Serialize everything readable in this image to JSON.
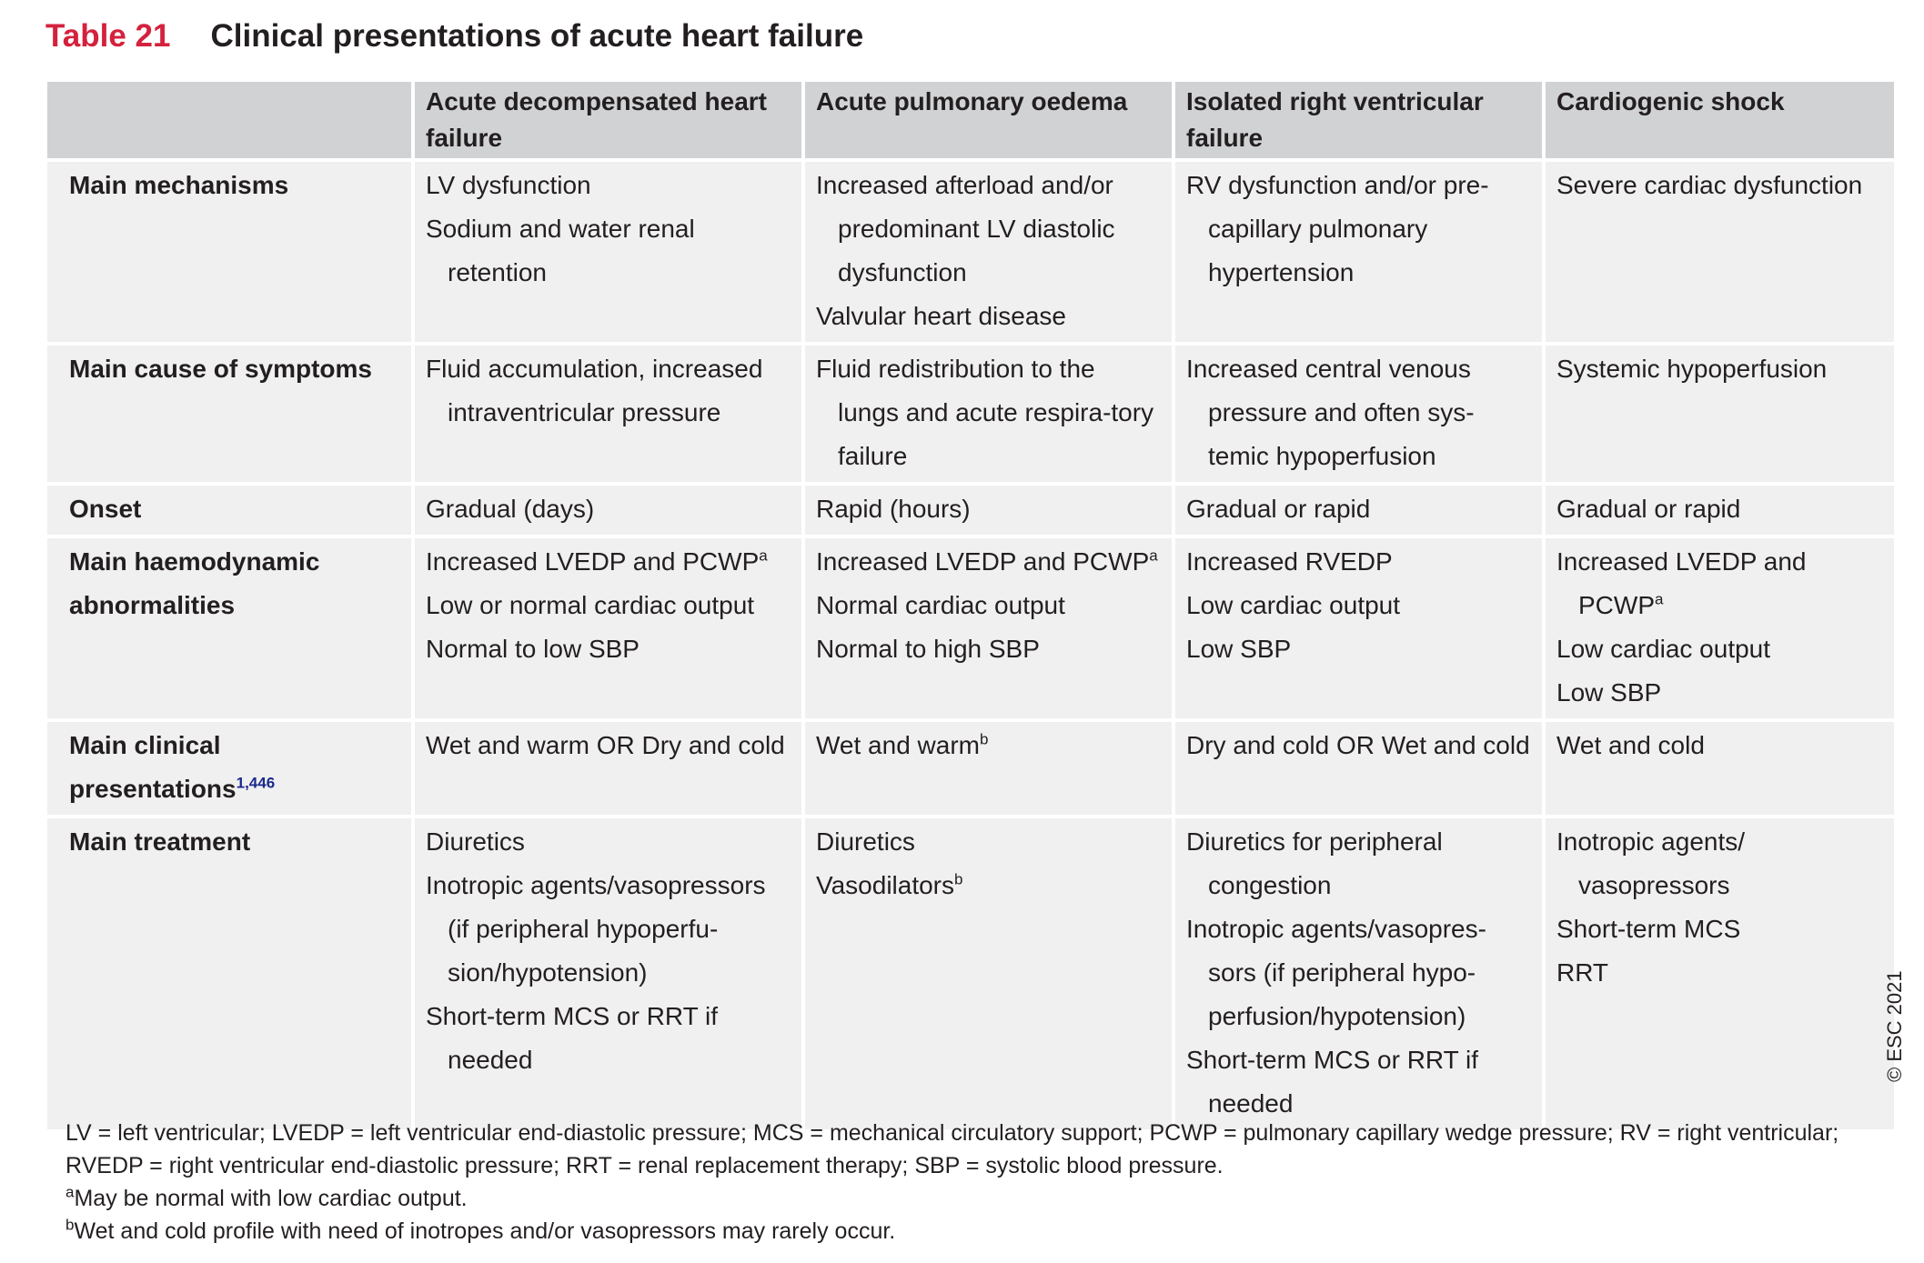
{
  "header": {
    "label": "Table 21",
    "title": "Clinical presentations of acute heart failure"
  },
  "table": {
    "columns": [
      "Acute decompensated heart failure",
      "Acute pulmonary oedema",
      "Isolated right ventricular failure",
      "Cardiogenic shock"
    ],
    "rows": [
      {
        "label": "Main mechanisms",
        "cells": [
          [
            "LV dysfunction",
            "Sodium and water renal retention"
          ],
          [
            "Increased afterload and/or predominant LV diastolic dysfunction",
            "Valvular heart disease"
          ],
          [
            "RV dysfunction and/or pre-capillary pulmonary hypertension"
          ],
          [
            "Severe cardiac dysfunction"
          ]
        ]
      },
      {
        "label": "Main cause of symptoms",
        "cells": [
          [
            "Fluid accumulation, increased intraventricular pressure"
          ],
          [
            "Fluid redistribution to the lungs and acute respira-tory failure"
          ],
          [
            "Increased central venous pressure and often sys-temic hypoperfusion"
          ],
          [
            "Systemic hypoperfusion"
          ]
        ]
      },
      {
        "label": "Onset",
        "cells": [
          [
            "Gradual (days)"
          ],
          [
            "Rapid (hours)"
          ],
          [
            "Gradual or rapid"
          ],
          [
            "Gradual or rapid"
          ]
        ]
      },
      {
        "label": "Main haemodynamic abnormalities",
        "cells": [
          [
            {
              "text": "Increased LVEDP and PCWP",
              "sup": "a"
            },
            "Low or normal cardiac output",
            "Normal to low SBP"
          ],
          [
            {
              "text": "Increased LVEDP and PCWP",
              "sup": "a"
            },
            "Normal cardiac output",
            "Normal to high SBP"
          ],
          [
            "Increased RVEDP",
            "Low cardiac output",
            "Low SBP"
          ],
          [
            {
              "text": "Increased LVEDP and PCWP",
              "sup": "a"
            },
            "Low cardiac output",
            "Low SBP"
          ]
        ]
      },
      {
        "label": {
          "text": "Main clinical presentations",
          "sup": "1,446"
        },
        "cells": [
          [
            "Wet and warm OR Dry and cold"
          ],
          [
            {
              "text": "Wet and warm",
              "sup": "b"
            }
          ],
          [
            "Dry and cold OR Wet and cold"
          ],
          [
            "Wet and cold"
          ]
        ]
      },
      {
        "label": "Main treatment",
        "cells": [
          [
            "Diuretics",
            "Inotropic agents/vasopressors (if peripheral hypoperfu-sion/hypotension)",
            "Short-term MCS or RRT if needed"
          ],
          [
            "Diuretics",
            {
              "text": "Vasodilators",
              "sup": "b"
            }
          ],
          [
            "Diuretics for peripheral congestion",
            "Inotropic agents/vasopres-sors (if peripheral hypo-perfusion/hypotension)",
            "Short-term MCS or RRT if needed"
          ],
          [
            "Inotropic agents/ vasopressors",
            "Short-term MCS",
            "RRT"
          ]
        ]
      }
    ]
  },
  "footnotes": {
    "abbreviations": "LV = left ventricular; LVEDP = left ventricular end-diastolic pressure; MCS = mechanical circulatory support; PCWP = pulmonary capillary wedge pressure; RV = right ventricular; RVEDP = right ventricular end-diastolic pressure; RRT = renal replacement therapy; SBP = systolic blood pressure.",
    "notes": [
      {
        "mark": "a",
        "text": "May be normal with low cardiac output."
      },
      {
        "mark": "b",
        "text": "Wet and cold profile with need of inotropes and/or vasopressors may rarely occur."
      }
    ]
  },
  "copyright": "© ESC 2021"
}
